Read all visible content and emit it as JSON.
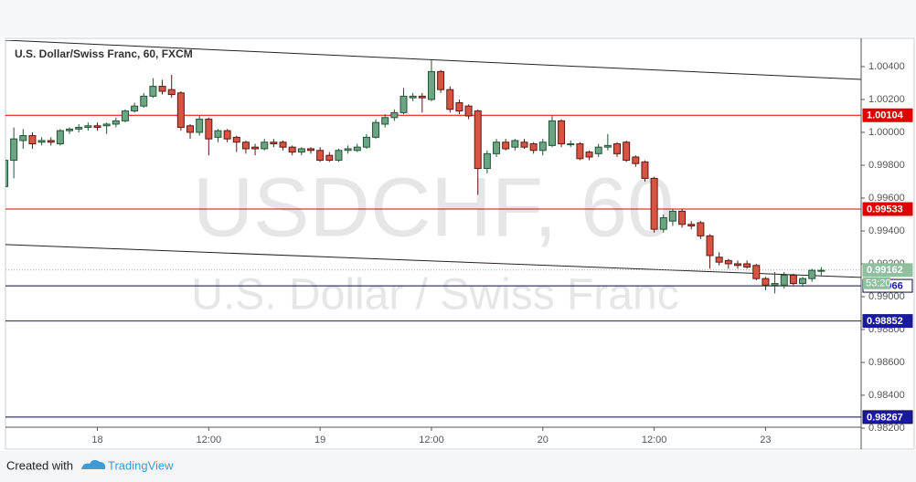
{
  "chart_data": {
    "type": "candlestick",
    "title": "U.S. Dollar/Swiss Franc, 60, FXCM",
    "watermark": "USDCHF, 60",
    "watermark_subtitle": "U.S. Dollar / Swiss Franc",
    "footer": {
      "created_with": "Created with",
      "brand": "TradingView"
    },
    "up_color": "#6ba583",
    "up_border": "#225437",
    "down_color": "#d75442",
    "down_border": "#5b1a13",
    "open": [
      0.9967,
      0.9983,
      0.9995,
      0.9998,
      0.9994,
      0.9995,
      0.9993,
      1.0001,
      1.0002,
      1.0003,
      1.0004,
      1.0004,
      1.0005,
      1.0007,
      1.0013,
      1.0016,
      1.0022,
      1.0028,
      1.0026,
      1.0024,
      1.0004,
      1.0,
      1.0008,
      0.9997,
      1.0001,
      0.9997,
      0.9994,
      0.9991,
      0.999,
      0.9994,
      0.9994,
      0.9991,
      0.9988,
      0.999,
      0.9989,
      0.9986,
      0.9983,
      0.9989,
      0.9989,
      0.9991,
      0.9997,
      1.0005,
      1.0009,
      1.0012,
      1.0021,
      1.0022,
      1.002,
      1.0037,
      1.0026,
      1.0018,
      1.0016,
      1.0013,
      0.9978,
      0.9987,
      0.9994,
      0.9991,
      0.9994,
      0.9993,
      0.9989,
      0.9992,
      1.0007,
      0.9993,
      0.9993,
      0.9988,
      0.9987,
      0.9991,
      0.9993,
      0.9994,
      0.9985,
      0.9982,
      0.9972,
      0.9941,
      0.9946,
      0.9952,
      0.9944,
      0.9945,
      0.9937,
      0.9924,
      0.9922,
      0.992,
      0.992,
      0.9919,
      0.9911,
      0.9907,
      0.9907,
      0.9913,
      0.9908,
      0.9911,
      0.9916
    ],
    "high": [
      0.9985,
      1.0003,
      1.0002,
      1.0,
      0.9997,
      0.9997,
      1.0002,
      1.0003,
      1.0005,
      1.0006,
      1.0006,
      1.0006,
      1.0009,
      1.0014,
      1.0018,
      1.0024,
      1.0033,
      1.0032,
      1.0035,
      1.0025,
      1.0005,
      1.001,
      1.0009,
      1.0002,
      1.0002,
      0.9998,
      0.9995,
      0.9993,
      0.9996,
      0.9996,
      0.9995,
      0.9992,
      0.9991,
      0.9991,
      0.9991,
      0.9988,
      0.999,
      0.9992,
      0.9993,
      0.9999,
      1.0008,
      1.0011,
      1.0014,
      1.0027,
      1.0024,
      1.0024,
      1.0044,
      1.0038,
      1.0028,
      1.002,
      1.0017,
      1.0014,
      0.9989,
      0.9996,
      0.9996,
      0.9996,
      0.9996,
      0.9994,
      0.9996,
      1.001,
      1.0008,
      0.9995,
      0.9994,
      0.9989,
      0.9993,
      0.9999,
      0.9994,
      0.9995,
      0.9986,
      0.9983,
      0.9973,
      0.995,
      0.9953,
      0.9953,
      0.9946,
      0.9946,
      0.9938,
      0.9927,
      0.9923,
      0.9922,
      0.9922,
      0.992,
      0.9912,
      0.9915,
      0.9915,
      0.9914,
      0.9912,
      0.9917,
      0.9918
    ],
    "low": [
      0.9962,
      0.9972,
      0.999,
      0.999,
      0.9992,
      0.9992,
      0.9992,
      0.9999,
      1.0,
      1.0001,
      1.0001,
      0.9999,
      1.0003,
      1.0006,
      1.0012,
      1.0015,
      1.0021,
      1.0023,
      1.0021,
      1.0001,
      0.9996,
      0.9998,
      0.9986,
      0.9994,
      0.9994,
      0.9988,
      0.9987,
      0.9986,
      0.9989,
      0.9991,
      0.9989,
      0.9986,
      0.9986,
      0.9987,
      0.9982,
      0.9982,
      0.9982,
      0.9987,
      0.9988,
      0.999,
      0.9996,
      1.0003,
      1.0007,
      1.0011,
      1.0019,
      1.0012,
      1.0019,
      1.0024,
      1.0012,
      1.0011,
      1.0008,
      0.9962,
      0.9975,
      0.9985,
      0.9989,
      0.9989,
      0.999,
      0.9987,
      0.9986,
      0.9991,
      0.9991,
      0.9991,
      0.9983,
      0.9983,
      0.9985,
      0.9989,
      0.9985,
      0.9982,
      0.9979,
      0.997,
      0.9939,
      0.9939,
      0.9943,
      0.9942,
      0.9941,
      0.9935,
      0.9917,
      0.9919,
      0.9917,
      0.9917,
      0.9917,
      0.991,
      0.9904,
      0.9902,
      0.9905,
      0.9907,
      0.9906,
      0.9909,
      0.9913
    ],
    "close": [
      0.9983,
      0.9996,
      0.9998,
      0.9993,
      0.9995,
      0.9994,
      1.0001,
      1.0002,
      1.0003,
      1.0004,
      1.0003,
      1.0005,
      1.0007,
      1.0013,
      1.0016,
      1.0022,
      1.0028,
      1.0025,
      1.0023,
      1.0003,
      1.0,
      1.0008,
      0.9996,
      1.0001,
      0.9996,
      0.9994,
      0.999,
      0.999,
      0.9994,
      0.9993,
      0.9991,
      0.9988,
      0.999,
      0.9989,
      0.9983,
      0.9983,
      0.9989,
      0.999,
      0.9991,
      0.9997,
      1.0006,
      1.0009,
      1.0012,
      1.0022,
      1.0022,
      1.0021,
      1.0037,
      1.0026,
      1.0014,
      1.0013,
      1.001,
      0.9978,
      0.9987,
      0.9994,
      0.999,
      0.9995,
      0.9991,
      0.9989,
      0.9994,
      1.0007,
      0.9993,
      0.9993,
      0.9984,
      0.9985,
      0.9991,
      0.9992,
      0.9987,
      0.9983,
      0.9981,
      0.9972,
      0.9941,
      0.9948,
      0.9952,
      0.9944,
      0.9943,
      0.9937,
      0.9925,
      0.9921,
      0.992,
      0.9919,
      0.9918,
      0.9911,
      0.9907,
      0.9908,
      0.9913,
      0.9908,
      0.9911,
      0.9916,
      0.9916
    ],
    "xlim": [
      0.1,
      92.3
    ],
    "ylim": [
      0.98083,
      1.00561
    ],
    "xticks": [
      {
        "value": 10,
        "label": "18"
      },
      {
        "value": 22,
        "label": "12:00"
      },
      {
        "value": 34,
        "label": "19"
      },
      {
        "value": 46,
        "label": "12:00"
      },
      {
        "value": 58,
        "label": "20"
      },
      {
        "value": 70,
        "label": "12:00"
      },
      {
        "value": 82,
        "label": "23"
      }
    ],
    "yticks": [
      {
        "value": 1.004,
        "label": "1.00400"
      },
      {
        "value": 1.002,
        "label": "1.00200"
      },
      {
        "value": 1.0,
        "label": "1.00000"
      },
      {
        "value": 0.998,
        "label": "0.99800"
      },
      {
        "value": 0.996,
        "label": "0.99600"
      },
      {
        "value": 0.994,
        "label": "0.99400"
      },
      {
        "value": 0.992,
        "label": "0.99200"
      },
      {
        "value": 0.99,
        "label": "0.99000"
      },
      {
        "value": 0.988,
        "label": "0.98800"
      },
      {
        "value": 0.986,
        "label": "0.98600"
      },
      {
        "value": 0.984,
        "label": "0.98400"
      },
      {
        "value": 0.982,
        "label": "0.98200"
      }
    ],
    "levels": [
      {
        "value": 1.00104,
        "color": "#e00000",
        "box_color": "#e00000",
        "text_color": "#ffffff"
      },
      {
        "value": 0.99533,
        "color": "#e00000",
        "box_color": "#e00000",
        "text_color": "#ffffff"
      },
      {
        "value": 0.99066,
        "color": "#0a0a40",
        "box_color": "#ffffff",
        "text_color": "#1a1aa0"
      },
      {
        "value": 0.98852,
        "color": "#1a1a90",
        "box_color": "#1a1aa0",
        "text_color": "#ffffff"
      },
      {
        "value": 0.98267,
        "color": "#0a0a40",
        "box_color": "#1a1aa0",
        "text_color": "#ffffff"
      }
    ],
    "last": {
      "value": 0.99162,
      "countdown": "53:20",
      "color": "#8fbf9f"
    },
    "trendlines": [
      {
        "x": [
          0.1,
          92.3
        ],
        "y": [
          1.00561,
          1.00322
        ]
      },
      {
        "x": [
          0.1,
          92.3
        ],
        "y": [
          0.99317,
          0.99117
        ]
      }
    ]
  }
}
